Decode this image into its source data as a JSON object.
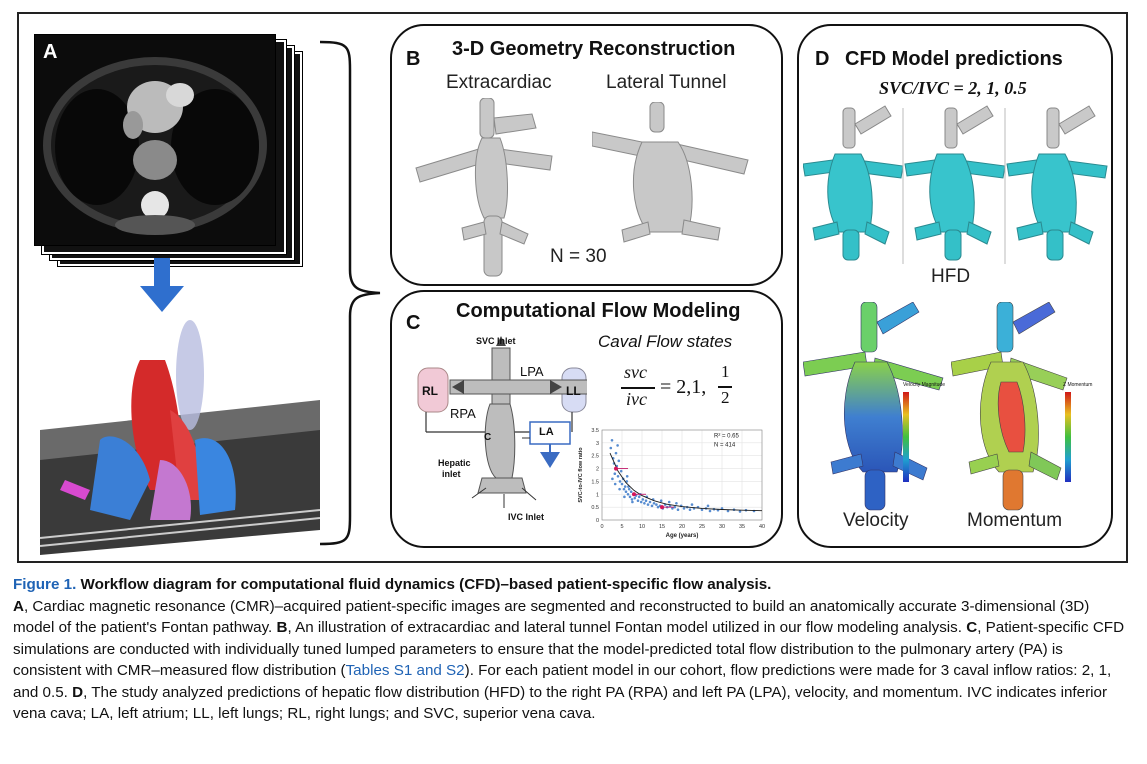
{
  "panels": {
    "a": {
      "letter": "A"
    },
    "b": {
      "letter": "B",
      "title": "3-D Geometry Reconstruction",
      "left_label": "Extracardiac",
      "right_label": "Lateral Tunnel",
      "n_label": "N = 30"
    },
    "c": {
      "letter": "C",
      "title": "Computational Flow Modeling",
      "svc_inlet": "SVC Inlet",
      "lpa": "LPA",
      "rpa": "RPA",
      "rl": "RL",
      "ll": "LL",
      "la": "LA",
      "c": "C",
      "hepatic_inlet_1": "Hepatic",
      "hepatic_inlet_2": "inlet",
      "ivc_inlet": "IVC Inlet",
      "caval_states": "Caval Flow states",
      "eq_num": "svc",
      "eq_den": "ivc",
      "eq_rhs": "= 2,1,",
      "frac_num": "1",
      "frac_den": "2"
    },
    "d": {
      "letter": "D",
      "title": "CFD Model predictions",
      "ratio": "SVC/IVC = 2, 1, 0.5",
      "hfd": "HFD",
      "velocity": "Velocity",
      "momentum": "Momentum",
      "vel_legend_title": "Velocity Magnitude",
      "mom_legend_title": "Z Momentum"
    }
  },
  "chart_data": {
    "type": "scatter",
    "xlabel": "Age (years)",
    "ylabel": "SVC-to-IVC flow ratio",
    "xlim": [
      0,
      40
    ],
    "ylim": [
      0,
      3.5
    ],
    "xticks": [
      "0",
      "5",
      "10",
      "15",
      "20",
      "25",
      "30",
      "35",
      "40"
    ],
    "yticks": [
      "0",
      "0.5",
      "1",
      "1.5",
      "2",
      "2.5",
      "3",
      "3.5"
    ],
    "annotation_r2": "R² = 0.65",
    "annotation_n": "N = 414",
    "highlight_points": [
      [
        3.5,
        2.0
      ],
      [
        8,
        1.0
      ],
      [
        15,
        0.5
      ]
    ],
    "fit": [
      [
        2,
        2.6
      ],
      [
        4,
        1.9
      ],
      [
        6,
        1.45
      ],
      [
        8,
        1.15
      ],
      [
        10,
        0.95
      ],
      [
        13,
        0.75
      ],
      [
        16,
        0.62
      ],
      [
        20,
        0.52
      ],
      [
        25,
        0.45
      ],
      [
        30,
        0.41
      ],
      [
        35,
        0.38
      ],
      [
        40,
        0.36
      ]
    ],
    "points": [
      [
        2.2,
        2.8
      ],
      [
        2.5,
        3.1
      ],
      [
        2.8,
        2.4
      ],
      [
        3.0,
        2.2
      ],
      [
        3.2,
        1.8
      ],
      [
        3.5,
        2.6
      ],
      [
        3.7,
        2.1
      ],
      [
        4.0,
        1.7
      ],
      [
        4.2,
        2.3
      ],
      [
        4.5,
        1.5
      ],
      [
        4.8,
        1.9
      ],
      [
        5.0,
        1.4
      ],
      [
        5.3,
        1.6
      ],
      [
        5.5,
        1.2
      ],
      [
        5.8,
        1.3
      ],
      [
        6.0,
        1.1
      ],
      [
        6.2,
        1.5
      ],
      [
        6.5,
        1.0
      ],
      [
        6.8,
        1.2
      ],
      [
        7.0,
        0.9
      ],
      [
        7.3,
        1.1
      ],
      [
        7.5,
        0.8
      ],
      [
        7.8,
        1.0
      ],
      [
        8.2,
        0.85
      ],
      [
        8.5,
        0.95
      ],
      [
        9.0,
        0.75
      ],
      [
        9.3,
        0.9
      ],
      [
        9.8,
        0.7
      ],
      [
        10.2,
        0.8
      ],
      [
        10.6,
        0.65
      ],
      [
        11.0,
        0.75
      ],
      [
        11.5,
        0.6
      ],
      [
        12.0,
        0.7
      ],
      [
        12.5,
        0.55
      ],
      [
        13.0,
        0.65
      ],
      [
        13.6,
        0.6
      ],
      [
        14.0,
        0.5
      ],
      [
        14.5,
        0.55
      ],
      [
        15.2,
        0.45
      ],
      [
        15.8,
        0.6
      ],
      [
        16.3,
        0.5
      ],
      [
        17.0,
        0.55
      ],
      [
        17.6,
        0.45
      ],
      [
        18.2,
        0.5
      ],
      [
        19.0,
        0.4
      ],
      [
        19.8,
        0.55
      ],
      [
        20.5,
        0.45
      ],
      [
        21.3,
        0.5
      ],
      [
        22.0,
        0.4
      ],
      [
        23.0,
        0.45
      ],
      [
        24.0,
        0.5
      ],
      [
        25.0,
        0.4
      ],
      [
        26.0,
        0.45
      ],
      [
        27.0,
        0.35
      ],
      [
        28.0,
        0.42
      ],
      [
        29.0,
        0.38
      ],
      [
        30.0,
        0.45
      ],
      [
        31.5,
        0.35
      ],
      [
        33.0,
        0.4
      ],
      [
        34.5,
        0.33
      ],
      [
        36.0,
        0.38
      ],
      [
        38.0,
        0.35
      ],
      [
        3.3,
        1.4
      ],
      [
        4.4,
        1.2
      ],
      [
        5.6,
        0.9
      ],
      [
        6.6,
        1.3
      ],
      [
        7.6,
        0.7
      ],
      [
        9.6,
        1.0
      ],
      [
        11.2,
        0.9
      ],
      [
        12.8,
        0.8
      ],
      [
        16.8,
        0.7
      ],
      [
        18.6,
        0.65
      ],
      [
        22.5,
        0.6
      ],
      [
        26.5,
        0.55
      ],
      [
        2.6,
        1.6
      ],
      [
        3.9,
        2.9
      ],
      [
        6.3,
        1.7
      ],
      [
        14.8,
        0.75
      ]
    ]
  },
  "caption": {
    "fig_num": "Figure 1.",
    "fig_title": "Workflow diagram for computational fluid dynamics (CFD)–based patient-specific flow analysis.",
    "a_letter": "A",
    "a_text": ", Cardiac magnetic resonance (CMR)–acquired patient-specific images are segmented and reconstructed to build an anatomically accurate 3-dimensional (3D) model of the patient's Fontan pathway. ",
    "b_letter": "B",
    "b_text": ", An illustration of extracardiac and lateral tunnel Fontan model utilized in our flow modeling analysis. ",
    "c_letter": "C",
    "c_text": ", Patient-specific CFD simulations are conducted with individually tuned lumped parameters to ensure that the model-predicted total flow distribution to the pulmonary artery (PA) is consistent with CMR–measured flow distribution (",
    "c_link": "Tables S1 and S2",
    "c_text2": "). For each patient model in our cohort, flow predictions were made for 3 caval inflow ratios: 2, 1, and 0.5. ",
    "d_letter": "D",
    "d_text": ", The study analyzed predictions of hepatic flow distribution (HFD) to the right PA (RPA) and left PA (LPA), velocity, and momentum. IVC indicates inferior vena cava; LA, left atrium; LL, left lungs; RL, right lungs; and SVC, superior vena cava."
  }
}
